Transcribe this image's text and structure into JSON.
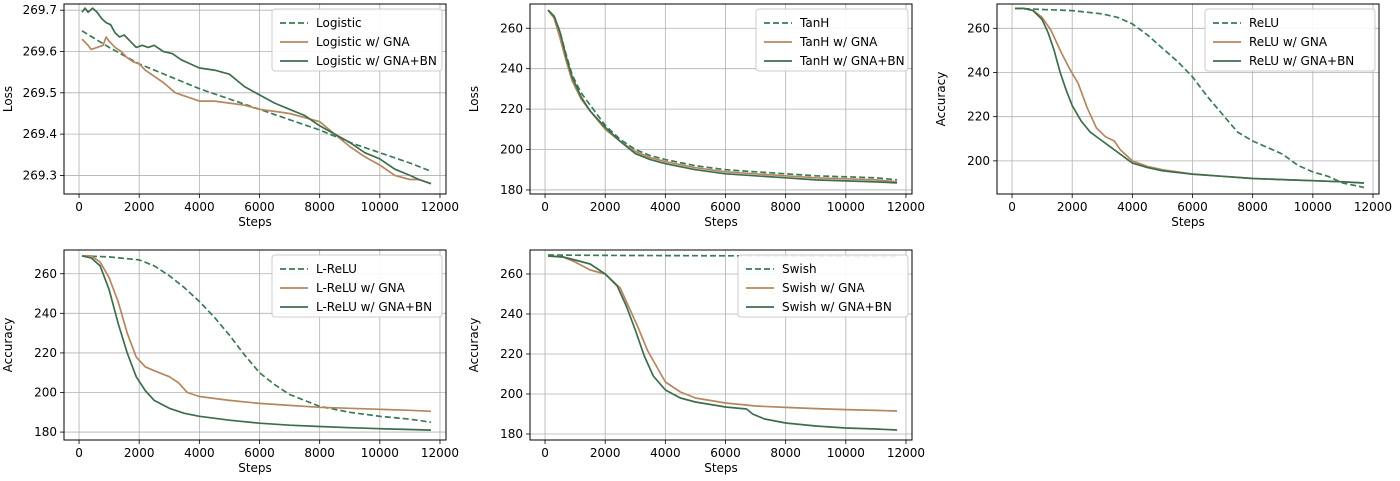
{
  "colors": {
    "dashed": "#3d7a55",
    "gna": "#b5875f",
    "gnabn": "#3e6d4d",
    "frame": "#000000",
    "grid": "#b0b0b0"
  },
  "chart_data": [
    {
      "type": "line",
      "xlabel": "Steps",
      "ylabel": "Loss",
      "xlim": [
        -500,
        12200
      ],
      "ylim": [
        269.255,
        269.715
      ],
      "xticks": [
        0,
        2000,
        4000,
        6000,
        8000,
        10000,
        12000
      ],
      "xtick_labels": [
        "0",
        "2000",
        "4000",
        "6000",
        "8000",
        "10000",
        "12000"
      ],
      "yticks": [
        269.3,
        269.4,
        269.5,
        269.6,
        269.7
      ],
      "ytick_labels": [
        "269.3",
        "269.4",
        "269.5",
        "269.6",
        "269.7"
      ],
      "grid": true,
      "legend": "upper right",
      "series": [
        {
          "name": "Logistic",
          "style": "dashed",
          "x": [
            100,
            1000,
            2000,
            3000,
            4000,
            5000,
            6000,
            7000,
            8000,
            9000,
            10000,
            11000,
            11700
          ],
          "y": [
            269.65,
            269.61,
            269.57,
            269.54,
            269.51,
            269.485,
            269.46,
            269.435,
            269.41,
            269.38,
            269.355,
            269.33,
            269.31
          ]
        },
        {
          "name": "Logistic w/ GNA",
          "style": "solid",
          "x": [
            100,
            300,
            400,
            600,
            800,
            900,
            1000,
            1200,
            1400,
            1600,
            1800,
            2000,
            2200,
            2500,
            2800,
            3200,
            3600,
            4000,
            4500,
            5000,
            5500,
            6000,
            6500,
            7000,
            7500,
            8000,
            8500,
            9000,
            9500,
            10000,
            10500,
            11000,
            11300,
            11700
          ],
          "y": [
            269.63,
            269.615,
            269.605,
            269.61,
            269.615,
            269.635,
            269.625,
            269.61,
            269.6,
            269.585,
            269.575,
            269.57,
            269.555,
            269.54,
            269.525,
            269.5,
            269.49,
            269.48,
            269.48,
            269.475,
            269.47,
            269.46,
            269.455,
            269.45,
            269.44,
            269.43,
            269.4,
            269.37,
            269.345,
            269.325,
            269.3,
            269.29,
            269.29,
            269.28
          ]
        },
        {
          "name": "Logistic w/ GNA+BN",
          "style": "solid",
          "x": [
            100,
            200,
            300,
            450,
            600,
            750,
            900,
            1050,
            1200,
            1350,
            1500,
            1700,
            1900,
            2100,
            2300,
            2500,
            2800,
            3100,
            3400,
            3700,
            4000,
            4500,
            5000,
            5500,
            6000,
            6500,
            7000,
            7500,
            8000,
            8500,
            9000,
            9500,
            10000,
            10500,
            11000,
            11300,
            11700
          ],
          "y": [
            269.695,
            269.705,
            269.695,
            269.705,
            269.695,
            269.68,
            269.67,
            269.665,
            269.645,
            269.635,
            269.64,
            269.625,
            269.61,
            269.615,
            269.61,
            269.615,
            269.6,
            269.595,
            269.58,
            269.57,
            269.56,
            269.555,
            269.545,
            269.515,
            269.495,
            269.475,
            269.46,
            269.445,
            269.42,
            269.4,
            269.38,
            269.355,
            269.34,
            269.315,
            269.3,
            269.29,
            269.28
          ]
        }
      ]
    },
    {
      "type": "line",
      "xlabel": "Steps",
      "ylabel": "Loss",
      "xlim": [
        -500,
        12200
      ],
      "ylim": [
        178,
        272
      ],
      "xticks": [
        0,
        2000,
        4000,
        6000,
        8000,
        10000,
        12000
      ],
      "xtick_labels": [
        "0",
        "2000",
        "4000",
        "6000",
        "8000",
        "10000",
        "12000"
      ],
      "yticks": [
        180,
        200,
        220,
        240,
        260
      ],
      "ytick_labels": [
        "180",
        "200",
        "220",
        "240",
        "260"
      ],
      "grid": true,
      "legend": "upper right",
      "series": [
        {
          "name": "TanH",
          "style": "dashed",
          "x": [
            100,
            300,
            500,
            700,
            900,
            1200,
            1500,
            2000,
            2500,
            3000,
            3500,
            4000,
            5000,
            6000,
            7000,
            8000,
            9000,
            10000,
            11000,
            11700
          ],
          "y": [
            269,
            266,
            258,
            247,
            237,
            228,
            222,
            212,
            205,
            200,
            197,
            195,
            192,
            190,
            189,
            188,
            187,
            186.5,
            186,
            185
          ]
        },
        {
          "name": "TanH w/ GNA",
          "style": "solid",
          "x": [
            100,
            300,
            500,
            700,
            900,
            1200,
            1500,
            2000,
            2500,
            3000,
            3500,
            4000,
            5000,
            6000,
            7000,
            8000,
            9000,
            10000,
            11000,
            11700
          ],
          "y": [
            269,
            265,
            255,
            244,
            234,
            225,
            219,
            210,
            204,
            199,
            196,
            194,
            191,
            189,
            188,
            187,
            186,
            185.5,
            185,
            184
          ]
        },
        {
          "name": "TanH w/ GNA+BN",
          "style": "solid",
          "x": [
            100,
            300,
            500,
            700,
            900,
            1200,
            1500,
            2000,
            2500,
            3000,
            3500,
            4000,
            5000,
            6000,
            7000,
            8000,
            9000,
            10000,
            11000,
            11700
          ],
          "y": [
            269,
            266,
            258,
            246,
            236,
            226,
            219,
            211,
            204,
            198,
            195,
            193,
            190,
            188,
            187,
            186,
            185,
            184.5,
            184,
            183.5
          ]
        }
      ]
    },
    {
      "type": "line",
      "xlabel": "Steps",
      "ylabel": "Accuracy",
      "xlim": [
        -500,
        12200
      ],
      "ylim": [
        185,
        271
      ],
      "xticks": [
        0,
        2000,
        4000,
        6000,
        8000,
        10000,
        12000
      ],
      "xtick_labels": [
        "0",
        "2000",
        "4000",
        "6000",
        "8000",
        "10000",
        "12000"
      ],
      "yticks": [
        200,
        220,
        240,
        260
      ],
      "ytick_labels": [
        "200",
        "220",
        "240",
        "260"
      ],
      "grid": true,
      "legend": "upper right",
      "series": [
        {
          "name": "ReLU",
          "style": "dashed",
          "x": [
            100,
            1000,
            2000,
            3000,
            3500,
            4000,
            4500,
            5000,
            5500,
            6000,
            6500,
            7000,
            7500,
            8000,
            8500,
            9000,
            9500,
            10000,
            10500,
            11000,
            11700
          ],
          "y": [
            269,
            268.5,
            268,
            266.5,
            265,
            262,
            257,
            251,
            245,
            238,
            229,
            221,
            213,
            209,
            206,
            203,
            198,
            195,
            193,
            190,
            188
          ]
        },
        {
          "name": "ReLU w/ GNA",
          "style": "solid",
          "x": [
            100,
            400,
            700,
            1000,
            1300,
            1600,
            1900,
            2200,
            2500,
            2800,
            3100,
            3400,
            3600,
            4000,
            4500,
            5000,
            6000,
            7000,
            8000,
            9000,
            10000,
            11000,
            11700
          ],
          "y": [
            269,
            269,
            268,
            265,
            259,
            250,
            242,
            235,
            224,
            215,
            211,
            209,
            205,
            200,
            197.5,
            196,
            194,
            193,
            192,
            191.5,
            191,
            190.5,
            190
          ]
        },
        {
          "name": "ReLU w/ GNA+BN",
          "style": "solid",
          "x": [
            100,
            400,
            700,
            1000,
            1200,
            1400,
            1600,
            1800,
            2000,
            2300,
            2600,
            3000,
            3300,
            3600,
            4000,
            4500,
            5000,
            6000,
            7000,
            8000,
            9000,
            10000,
            11000,
            11700
          ],
          "y": [
            269,
            269,
            268,
            264,
            258,
            250,
            240,
            232,
            225,
            218,
            213,
            209,
            206,
            203,
            199,
            197,
            195.5,
            194,
            193,
            192,
            191.5,
            191,
            190.5,
            190
          ]
        }
      ]
    },
    {
      "type": "line",
      "xlabel": "Steps",
      "ylabel": "Accuracy",
      "xlim": [
        -500,
        12200
      ],
      "ylim": [
        176,
        272
      ],
      "xticks": [
        0,
        2000,
        4000,
        6000,
        8000,
        10000,
        12000
      ],
      "xtick_labels": [
        "0",
        "2000",
        "4000",
        "6000",
        "8000",
        "10000",
        "12000"
      ],
      "yticks": [
        180,
        200,
        220,
        240,
        260
      ],
      "ytick_labels": [
        "180",
        "200",
        "220",
        "240",
        "260"
      ],
      "grid": true,
      "legend": "upper right",
      "series": [
        {
          "name": "L-ReLU",
          "style": "dashed",
          "x": [
            100,
            1000,
            2000,
            2500,
            3000,
            3500,
            4000,
            4500,
            5000,
            5500,
            6000,
            6500,
            7000,
            7500,
            8000,
            9000,
            10000,
            11000,
            11700
          ],
          "y": [
            269,
            268.5,
            267,
            264,
            259,
            253,
            246,
            238,
            229,
            219,
            210,
            204,
            199,
            196,
            193,
            190,
            188,
            186.5,
            185
          ]
        },
        {
          "name": "L-ReLU w/ GNA",
          "style": "solid",
          "x": [
            100,
            400,
            700,
            1000,
            1300,
            1600,
            1900,
            2200,
            2500,
            3000,
            3300,
            3600,
            4000,
            5000,
            6000,
            7000,
            8000,
            9000,
            10000,
            11000,
            11700
          ],
          "y": [
            269,
            269,
            266,
            258,
            246,
            230,
            218,
            213,
            211,
            208,
            205,
            200,
            198,
            196,
            194.5,
            193.5,
            192.5,
            192,
            191.5,
            191,
            190.5
          ]
        },
        {
          "name": "L-ReLU w/ GNA+BN",
          "style": "solid",
          "x": [
            100,
            400,
            700,
            1000,
            1300,
            1600,
            1900,
            2200,
            2500,
            3000,
            3500,
            4000,
            5000,
            6000,
            7000,
            8000,
            9000,
            10000,
            11000,
            11700
          ],
          "y": [
            269,
            268,
            264,
            252,
            235,
            220,
            208,
            201,
            196,
            192,
            189.5,
            188,
            186,
            184.5,
            183.5,
            182.8,
            182.2,
            181.7,
            181.3,
            181
          ]
        }
      ]
    },
    {
      "type": "line",
      "xlabel": "Steps",
      "ylabel": "Accuracy",
      "xlim": [
        -500,
        12200
      ],
      "ylim": [
        177,
        272
      ],
      "xticks": [
        0,
        2000,
        4000,
        6000,
        8000,
        10000,
        12000
      ],
      "xtick_labels": [
        "0",
        "2000",
        "4000",
        "6000",
        "8000",
        "10000",
        "12000"
      ],
      "yticks": [
        180,
        200,
        220,
        240,
        260
      ],
      "ytick_labels": [
        "180",
        "200",
        "220",
        "240",
        "260"
      ],
      "grid": true,
      "legend": "upper right",
      "series": [
        {
          "name": "Swish",
          "style": "dashed",
          "x": [
            100,
            2000,
            4000,
            6000,
            8000,
            10000,
            11700
          ],
          "y": [
            269.5,
            269.3,
            269.2,
            269.1,
            269,
            268.9,
            268.8
          ]
        },
        {
          "name": "Swish w/ GNA",
          "style": "solid",
          "x": [
            100,
            600,
            1000,
            1500,
            2000,
            2500,
            2800,
            3100,
            3400,
            3700,
            4000,
            4500,
            5000,
            6000,
            7000,
            8000,
            9000,
            10000,
            11000,
            11700
          ],
          "y": [
            269,
            268.5,
            266,
            262,
            260,
            253,
            243,
            233,
            222,
            214,
            206,
            201,
            198,
            195.5,
            194,
            193.3,
            192.7,
            192.2,
            191.8,
            191.5
          ]
        },
        {
          "name": "Swish w/ GNA+BN",
          "style": "solid",
          "x": [
            100,
            600,
            1000,
            1500,
            2000,
            2400,
            2700,
            3000,
            3300,
            3600,
            4000,
            4500,
            5000,
            6000,
            6700,
            6900,
            7300,
            8000,
            9000,
            10000,
            11000,
            11700
          ],
          "y": [
            269,
            268.5,
            267,
            265,
            260,
            254,
            244,
            232,
            219,
            209,
            202,
            198,
            196,
            193.5,
            192.5,
            190,
            187.5,
            185.5,
            184,
            183,
            182.5,
            182
          ]
        }
      ]
    }
  ]
}
